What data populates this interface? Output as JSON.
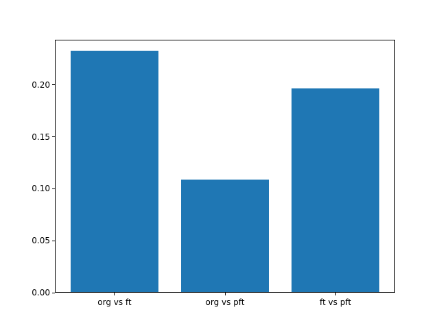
{
  "chart_data": {
    "type": "bar",
    "categories": [
      "org vs ft",
      "org vs pft",
      "ft vs pft"
    ],
    "values": [
      0.232,
      0.108,
      0.196
    ],
    "title": "",
    "xlabel": "",
    "ylabel": "",
    "ylim": [
      0,
      0.2436
    ],
    "yticks": [
      0.0,
      0.05,
      0.1,
      0.15,
      0.2
    ],
    "ytick_labels": [
      "0.00",
      "0.05",
      "0.10",
      "0.15",
      "0.20"
    ],
    "bar_color": "#1f77b4",
    "spine_color": "#000000",
    "background_color": "#ffffff",
    "grid": false,
    "legend": null
  }
}
